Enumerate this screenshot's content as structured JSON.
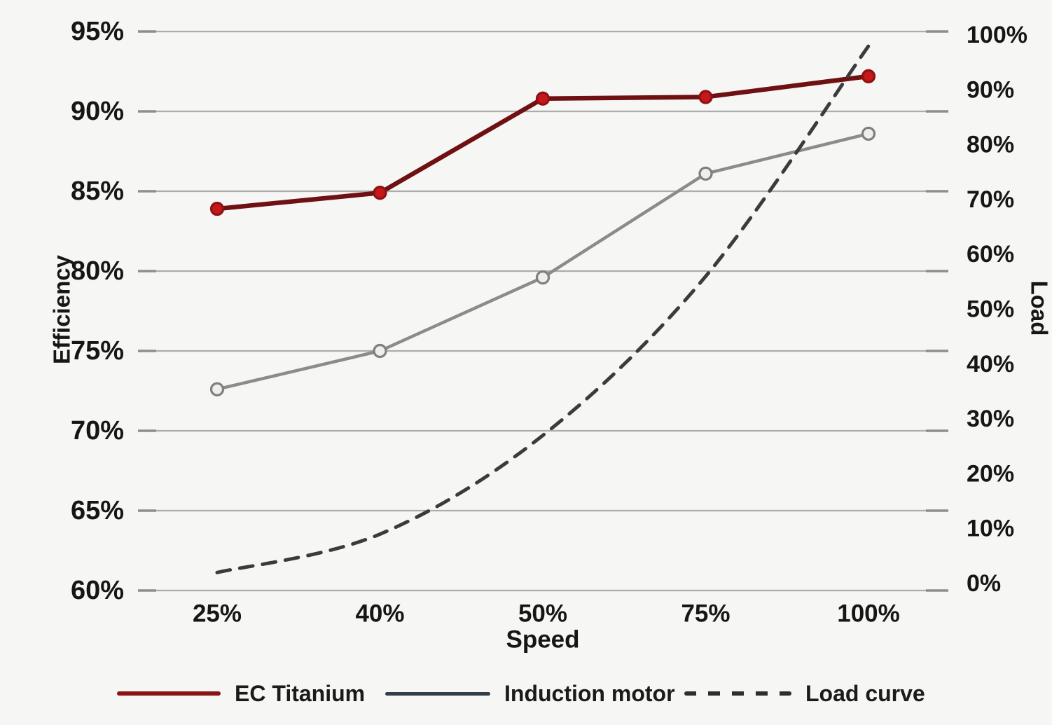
{
  "chart_data": {
    "type": "line",
    "title": "",
    "xlabel": "Speed",
    "categories": [
      "25%",
      "40%",
      "50%",
      "75%",
      "100%"
    ],
    "grid": true,
    "legend_position": "bottom",
    "left_axis": {
      "label": "Efficiency",
      "min": 60,
      "max": 95,
      "tick_step": 5,
      "ticks": [
        "95%",
        "90%",
        "85%",
        "80%",
        "75%",
        "70%",
        "65%",
        "60%"
      ]
    },
    "right_axis": {
      "label": "Load",
      "min": 0,
      "max": 100,
      "tick_step": 10,
      "ticks": [
        "100%",
        "90%",
        "80%",
        "70%",
        "60%",
        "50%",
        "40%",
        "30%",
        "20%",
        "10%",
        "0%"
      ]
    },
    "series": [
      {
        "name": "EC Titanium",
        "axis": "left",
        "style": "solid",
        "smooth": false,
        "markers": true,
        "color": "#6f1012",
        "marker_fill": "#c4181b",
        "marker_stroke": "#8f1113",
        "legend_color": "#8c1315",
        "values": [
          83.9,
          84.9,
          90.8,
          90.9,
          92.2
        ],
        "unit": "%"
      },
      {
        "name": "Induction motor",
        "axis": "left",
        "style": "solid",
        "smooth": false,
        "markers": true,
        "color": "#8b8b89",
        "marker_fill": "#eeeeec",
        "marker_stroke": "#7f7f7d",
        "legend_color": "#333e49",
        "values": [
          72.6,
          75.0,
          79.6,
          86.1,
          88.6
        ],
        "unit": "%"
      },
      {
        "name": "Load curve",
        "axis": "right",
        "style": "dashed",
        "smooth": true,
        "markers": false,
        "color": "#3b3b3b",
        "legend_color": "#2e2e2e",
        "values": [
          2,
          9,
          27,
          56,
          98
        ],
        "unit": "%"
      }
    ],
    "colors": {
      "background": "#f6f6f4",
      "gridline": "#adadab",
      "tick_cap": "#8e8e8c",
      "text": "#161616"
    }
  }
}
